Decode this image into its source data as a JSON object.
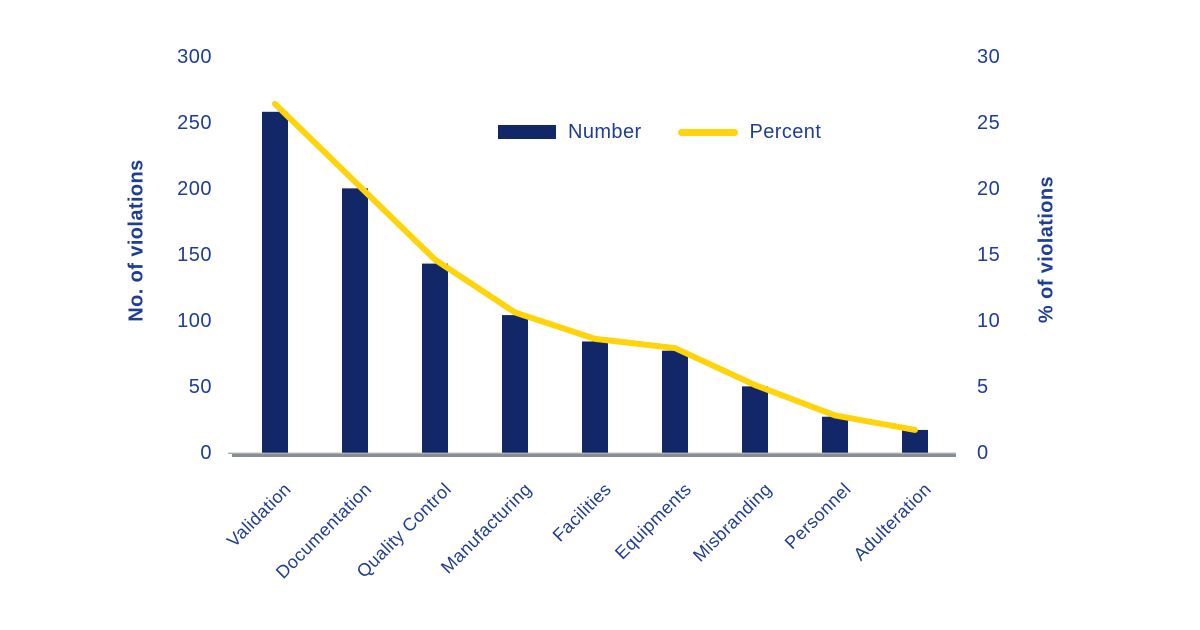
{
  "chart_data": {
    "type": "bar+line",
    "title": "",
    "categories": [
      "Validation",
      "Documentation",
      "Quality Control",
      "Manufacturing",
      "Facilities",
      "Equipments",
      "Misbranding",
      "Personnel",
      "Adulteration"
    ],
    "series": [
      {
        "name": "Number",
        "type": "bar",
        "axis": "left",
        "color": "#112768",
        "values": [
          260,
          202,
          145,
          106,
          86,
          79,
          52,
          29,
          19
        ]
      },
      {
        "name": "Percent",
        "type": "line",
        "axis": "right",
        "color": "#FFD40B",
        "values": [
          26.6,
          20.7,
          14.8,
          10.8,
          8.8,
          8.1,
          5.3,
          3.0,
          1.9
        ]
      }
    ],
    "left_axis": {
      "title": "No. of violations",
      "min": 0,
      "max": 300,
      "step": 50,
      "ticks": [
        0,
        50,
        100,
        150,
        200,
        250,
        300
      ]
    },
    "right_axis": {
      "title": "% of violations",
      "min": 0,
      "max": 30,
      "step": 5,
      "ticks": [
        0,
        5,
        10,
        15,
        20,
        25,
        30
      ]
    },
    "legend": {
      "position": "top-center",
      "items": [
        "Number",
        "Percent"
      ]
    },
    "grid": false
  },
  "colors": {
    "bar": "#112768",
    "line": "#FFD40B",
    "text": "#1E3D94",
    "axis_line": "#888D92",
    "axis_line_highlight": "#A9AEB4",
    "background": "#FFFFFF"
  }
}
